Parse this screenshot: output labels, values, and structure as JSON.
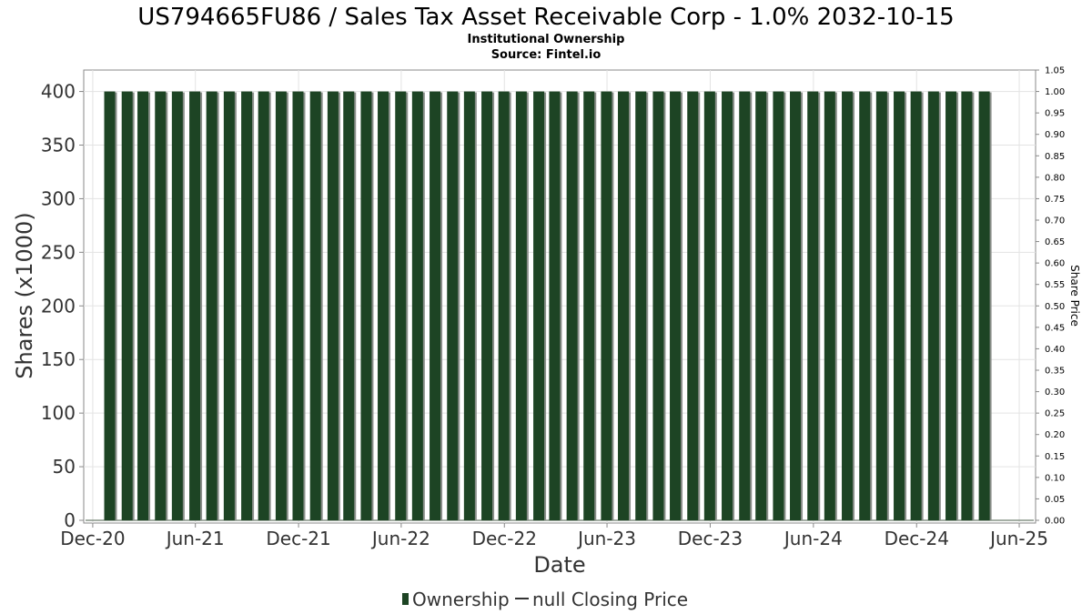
{
  "chart_data": {
    "type": "bar",
    "title": "US794665FU86 / Sales Tax Asset Receivable Corp - 1.0% 2032-10-15",
    "subtitle": "Institutional Ownership",
    "source": "Source: Fintel.io",
    "xlabel": "Date",
    "ylabel": "Shares (x1000)",
    "y2label": "Share Price",
    "ylim": [
      0,
      420
    ],
    "yticks": [
      "0",
      "50",
      "100",
      "150",
      "200",
      "250",
      "300",
      "350",
      "400"
    ],
    "y2lim": [
      0,
      1.05
    ],
    "y2ticks": [
      "0.00",
      "0.05",
      "0.10",
      "0.15",
      "0.20",
      "0.25",
      "0.30",
      "0.35",
      "0.40",
      "0.45",
      "0.50",
      "0.55",
      "0.60",
      "0.65",
      "0.70",
      "0.75",
      "0.80",
      "0.85",
      "0.90",
      "0.95",
      "1.00",
      "1.05"
    ],
    "xlim": [
      "2020-11-15",
      "2025-06-30"
    ],
    "xticks": [
      {
        "label": "Dec-20",
        "date": "2020-12-01"
      },
      {
        "label": "Jun-21",
        "date": "2021-06-01"
      },
      {
        "label": "Dec-21",
        "date": "2021-12-01"
      },
      {
        "label": "Jun-22",
        "date": "2022-06-01"
      },
      {
        "label": "Dec-22",
        "date": "2022-12-01"
      },
      {
        "label": "Jun-23",
        "date": "2023-06-01"
      },
      {
        "label": "Dec-23",
        "date": "2023-12-01"
      },
      {
        "label": "Jun-24",
        "date": "2024-06-01"
      },
      {
        "label": "Dec-24",
        "date": "2024-12-01"
      },
      {
        "label": "Jun-25",
        "date": "2025-06-01"
      }
    ],
    "grid": true,
    "legend_position": "bottom",
    "series": [
      {
        "name": "Ownership",
        "type": "bar",
        "color": "#1d4424",
        "x": [
          "2020-12-31",
          "2021-01-31",
          "2021-02-28",
          "2021-03-31",
          "2021-04-30",
          "2021-05-31",
          "2021-06-30",
          "2021-07-31",
          "2021-08-31",
          "2021-09-30",
          "2021-10-31",
          "2021-11-30",
          "2021-12-31",
          "2022-01-31",
          "2022-02-28",
          "2022-03-31",
          "2022-04-30",
          "2022-05-31",
          "2022-06-30",
          "2022-07-31",
          "2022-08-31",
          "2022-09-30",
          "2022-10-31",
          "2022-11-30",
          "2022-12-31",
          "2023-01-31",
          "2023-02-28",
          "2023-03-31",
          "2023-04-30",
          "2023-05-31",
          "2023-06-30",
          "2023-07-31",
          "2023-08-31",
          "2023-09-30",
          "2023-10-31",
          "2023-11-30",
          "2023-12-31",
          "2024-01-31",
          "2024-02-29",
          "2024-03-31",
          "2024-04-30",
          "2024-05-31",
          "2024-06-30",
          "2024-07-31",
          "2024-08-31",
          "2024-09-30",
          "2024-10-31",
          "2024-11-30",
          "2024-12-31",
          "2025-01-31",
          "2025-02-28",
          "2025-03-31"
        ],
        "values": [
          400,
          400,
          400,
          400,
          400,
          400,
          400,
          400,
          400,
          400,
          400,
          400,
          400,
          400,
          400,
          400,
          400,
          400,
          400,
          400,
          400,
          400,
          400,
          400,
          400,
          400,
          400,
          400,
          400,
          400,
          400,
          400,
          400,
          400,
          400,
          400,
          400,
          400,
          400,
          400,
          400,
          400,
          400,
          400,
          400,
          400,
          400,
          400,
          400,
          400,
          400,
          400
        ]
      },
      {
        "name": "null Closing Price",
        "type": "line",
        "color": "#333333",
        "x": [],
        "values": []
      }
    ]
  }
}
